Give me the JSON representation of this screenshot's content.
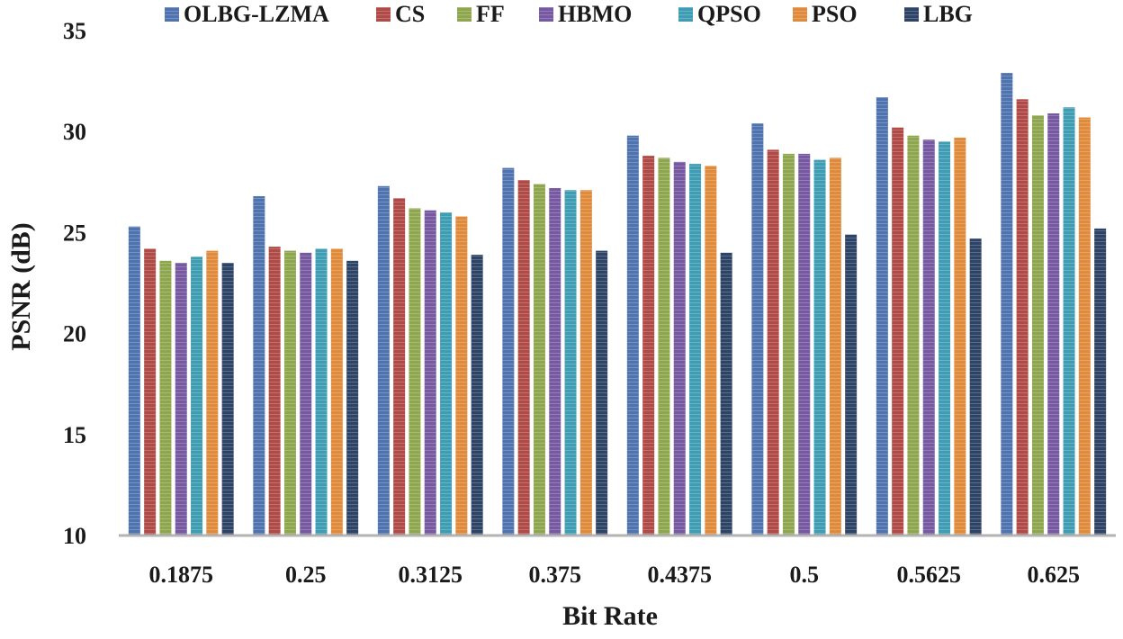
{
  "chart_data": {
    "type": "bar",
    "title": "",
    "xlabel": "Bit Rate",
    "ylabel": "PSNR (dB)",
    "ylim": [
      10,
      35
    ],
    "yticks": [
      10,
      15,
      20,
      25,
      30,
      35
    ],
    "grid": false,
    "legend_position": "top",
    "categories": [
      "0.1875",
      "0.25",
      "0.3125",
      "0.375",
      "0.4375",
      "0.5",
      "0.5625",
      "0.625"
    ],
    "series": [
      {
        "name": "OLBG-LZMA",
        "color": "#4F73AE",
        "values": [
          25.3,
          26.8,
          27.3,
          28.2,
          29.8,
          30.4,
          31.7,
          32.9
        ]
      },
      {
        "name": "CS",
        "color": "#B04A47",
        "values": [
          24.2,
          24.3,
          26.7,
          27.6,
          28.8,
          29.1,
          30.2,
          31.6
        ]
      },
      {
        "name": "FF",
        "color": "#8EA64E",
        "values": [
          23.6,
          24.1,
          26.2,
          27.4,
          28.7,
          28.9,
          29.8,
          30.8
        ]
      },
      {
        "name": "HBMO",
        "color": "#7659A0",
        "values": [
          23.5,
          24.0,
          26.1,
          27.2,
          28.5,
          28.9,
          29.6,
          30.9
        ]
      },
      {
        "name": "QPSO",
        "color": "#3F9DB3",
        "values": [
          23.8,
          24.2,
          26.0,
          27.1,
          28.4,
          28.6,
          29.5,
          31.2
        ]
      },
      {
        "name": "PSO",
        "color": "#E08A3C",
        "values": [
          24.1,
          24.2,
          25.8,
          27.1,
          28.3,
          28.7,
          29.7,
          30.7
        ]
      },
      {
        "name": "LBG",
        "color": "#2E4467",
        "values": [
          23.5,
          23.6,
          23.9,
          24.1,
          24.0,
          24.9,
          24.7,
          25.2
        ]
      }
    ]
  }
}
